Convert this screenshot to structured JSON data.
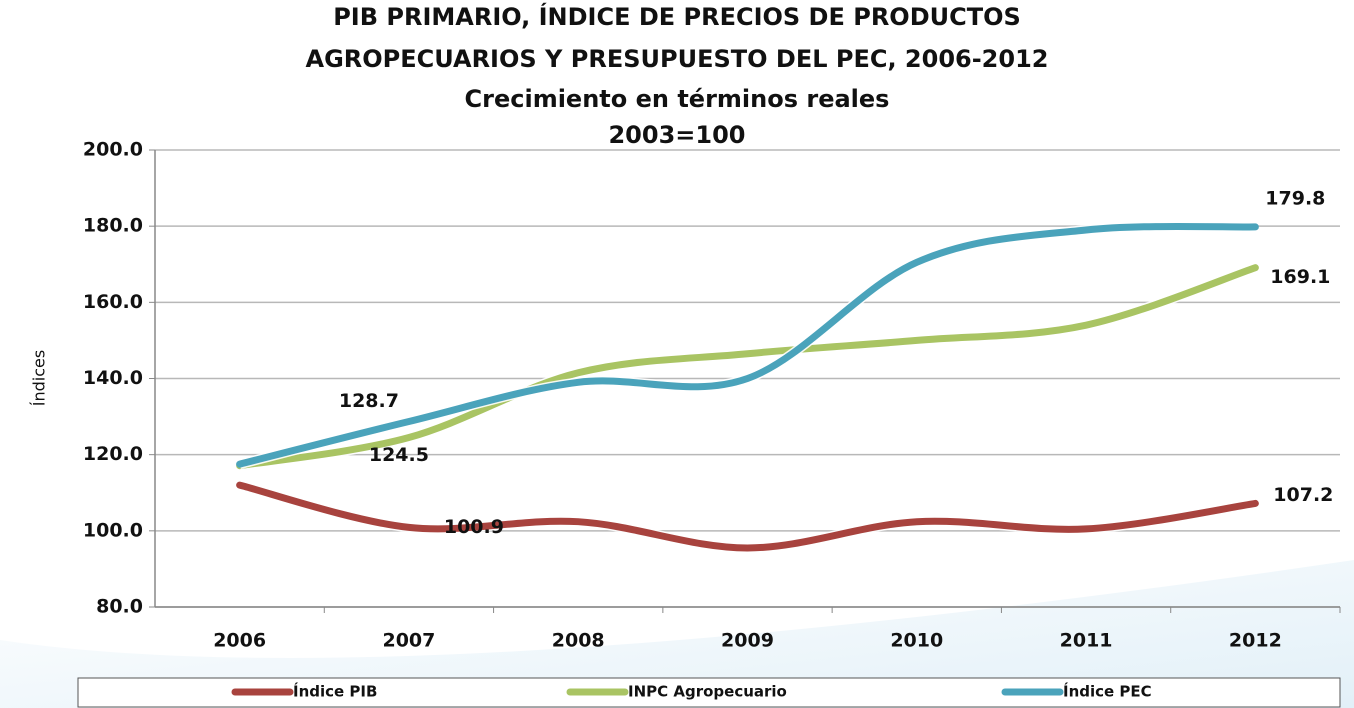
{
  "chart_data": {
    "type": "line",
    "title": [
      "PIB PRIMARIO, ÍNDICE DE PRECIOS DE PRODUCTOS",
      "AGROPECUARIOS Y PRESUPUESTO DEL PEC, 2006-2012"
    ],
    "subtitle": [
      "Crecimiento en términos reales",
      "2003=100"
    ],
    "y_label": "Índices",
    "categories": [
      "2006",
      "2007",
      "2008",
      "2009",
      "2010",
      "2011",
      "2012"
    ],
    "series": [
      {
        "name": "Índice PIB",
        "color": "#a8433e",
        "values": [
          112.0,
          100.9,
          102.4,
          95.5,
          102.4,
          100.5,
          107.2
        ],
        "value_labels": [
          null,
          "100.9",
          null,
          null,
          null,
          null,
          "107.2"
        ]
      },
      {
        "name": "INPC Agropecuario",
        "color": "#a9c463",
        "values": [
          117.1,
          124.5,
          141.5,
          146.5,
          150.0,
          154.0,
          169.1
        ],
        "value_labels": [
          null,
          "124.5",
          null,
          null,
          null,
          null,
          "169.1"
        ]
      },
      {
        "name": "Índice PEC",
        "color": "#4aa3bb",
        "values": [
          117.5,
          128.7,
          139.0,
          140.0,
          170.5,
          179.0,
          179.8
        ],
        "value_labels": [
          null,
          "128.7",
          null,
          null,
          null,
          null,
          "179.8"
        ]
      }
    ],
    "ylim": [
      80,
      200
    ],
    "yticks": [
      {
        "value": 80,
        "label": "80.0"
      },
      {
        "value": 100,
        "label": "100.0"
      },
      {
        "value": 120,
        "label": "120.0"
      },
      {
        "value": 140,
        "label": "140.0"
      },
      {
        "value": 160,
        "label": "160.0"
      },
      {
        "value": 180,
        "label": "180.0"
      },
      {
        "value": 200,
        "label": "200.0"
      }
    ],
    "grid": true,
    "legend": "bottom"
  }
}
